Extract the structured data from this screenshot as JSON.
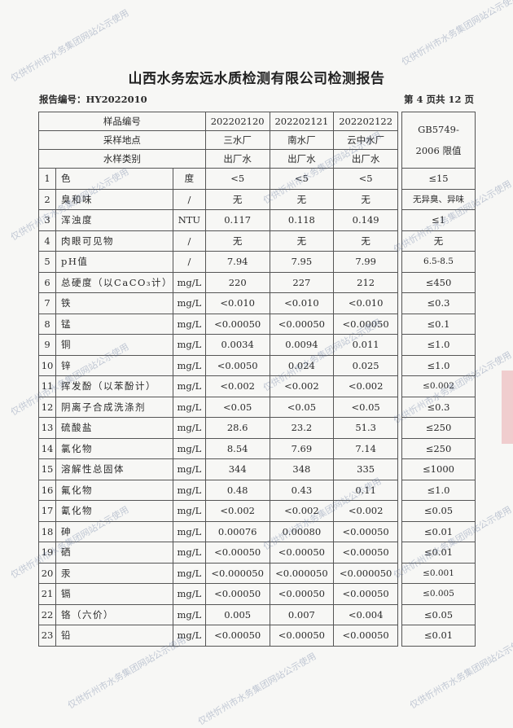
{
  "header": {
    "title": "山西水务宏远水质检测有限公司检测报告",
    "report_no": "报告编号：HY2022010",
    "page": "第 4 页共 12 页"
  },
  "table": {
    "sample_no_label": "样品编号",
    "site_label": "采样地点",
    "type_label": "水样类别",
    "samples": [
      {
        "id": "202202120",
        "site": "三水厂",
        "type": "出厂水"
      },
      {
        "id": "202202121",
        "site": "南水厂",
        "type": "出厂水"
      },
      {
        "id": "202202122",
        "site": "云中水厂",
        "type": "出厂水"
      }
    ],
    "limit_header_1": "GB5749-",
    "limit_header_2": "2006 限值",
    "rows": [
      {
        "no": "1",
        "item": "色",
        "unit": "度",
        "v": [
          "<5",
          "<5",
          "<5"
        ],
        "limit": "≤15"
      },
      {
        "no": "2",
        "item": "臭和味",
        "unit": "/",
        "v": [
          "无",
          "无",
          "无"
        ],
        "limit": "无异臭、异味"
      },
      {
        "no": "3",
        "item": "浑浊度",
        "unit": "NTU",
        "v": [
          "0.117",
          "0.118",
          "0.149"
        ],
        "limit": "≤1"
      },
      {
        "no": "4",
        "item": "肉眼可见物",
        "unit": "/",
        "v": [
          "无",
          "无",
          "无"
        ],
        "limit": "无"
      },
      {
        "no": "5",
        "item": "pH值",
        "unit": "/",
        "v": [
          "7.94",
          "7.95",
          "7.99"
        ],
        "limit": "6.5-8.5"
      },
      {
        "no": "6",
        "item": "总硬度（以CaCO₃计）",
        "unit": "mg/L",
        "v": [
          "220",
          "227",
          "212"
        ],
        "limit": "≤450"
      },
      {
        "no": "7",
        "item": "铁",
        "unit": "mg/L",
        "v": [
          "<0.010",
          "<0.010",
          "<0.010"
        ],
        "limit": "≤0.3"
      },
      {
        "no": "8",
        "item": "锰",
        "unit": "mg/L",
        "v": [
          "<0.00050",
          "<0.00050",
          "<0.00050"
        ],
        "limit": "≤0.1"
      },
      {
        "no": "9",
        "item": "铜",
        "unit": "mg/L",
        "v": [
          "0.0034",
          "0.0094",
          "0.011"
        ],
        "limit": "≤1.0"
      },
      {
        "no": "10",
        "item": "锌",
        "unit": "mg/L",
        "v": [
          "<0.0050",
          "0.024",
          "0.025"
        ],
        "limit": "≤1.0"
      },
      {
        "no": "11",
        "item": "挥发酚（以苯酚计）",
        "unit": "mg/L",
        "v": [
          "<0.002",
          "<0.002",
          "<0.002"
        ],
        "limit": "≤0.002"
      },
      {
        "no": "12",
        "item": "阴离子合成洗涤剂",
        "unit": "mg/L",
        "v": [
          "<0.05",
          "<0.05",
          "<0.05"
        ],
        "limit": "≤0.3"
      },
      {
        "no": "13",
        "item": "硫酸盐",
        "unit": "mg/L",
        "v": [
          "28.6",
          "23.2",
          "51.3"
        ],
        "limit": "≤250"
      },
      {
        "no": "14",
        "item": "氯化物",
        "unit": "mg/L",
        "v": [
          "8.54",
          "7.69",
          "7.14"
        ],
        "limit": "≤250"
      },
      {
        "no": "15",
        "item": "溶解性总固体",
        "unit": "mg/L",
        "v": [
          "344",
          "348",
          "335"
        ],
        "limit": "≤1000"
      },
      {
        "no": "16",
        "item": "氟化物",
        "unit": "mg/L",
        "v": [
          "0.48",
          "0.43",
          "0.11"
        ],
        "limit": "≤1.0"
      },
      {
        "no": "17",
        "item": "氰化物",
        "unit": "mg/L",
        "v": [
          "<0.002",
          "<0.002",
          "<0.002"
        ],
        "limit": "≤0.05"
      },
      {
        "no": "18",
        "item": "砷",
        "unit": "mg/L",
        "v": [
          "0.00076",
          "0.00080",
          "<0.00050"
        ],
        "limit": "≤0.01"
      },
      {
        "no": "19",
        "item": "硒",
        "unit": "mg/L",
        "v": [
          "<0.00050",
          "<0.00050",
          "<0.00050"
        ],
        "limit": "≤0.01"
      },
      {
        "no": "20",
        "item": "汞",
        "unit": "mg/L",
        "v": [
          "<0.000050",
          "<0.000050",
          "<0.000050"
        ],
        "limit": "≤0.001"
      },
      {
        "no": "21",
        "item": "镉",
        "unit": "mg/L",
        "v": [
          "<0.00050",
          "<0.00050",
          "<0.00050"
        ],
        "limit": "≤0.005"
      },
      {
        "no": "22",
        "item": "铬（六价）",
        "unit": "mg/L",
        "v": [
          "0.005",
          "0.007",
          "<0.004"
        ],
        "limit": "≤0.05"
      },
      {
        "no": "23",
        "item": "铅",
        "unit": "mg/L",
        "v": [
          "<0.00050",
          "<0.00050",
          "<0.00050"
        ],
        "limit": "≤0.01"
      }
    ]
  },
  "watermark": "仅供忻州市水务集团网站公示使用"
}
